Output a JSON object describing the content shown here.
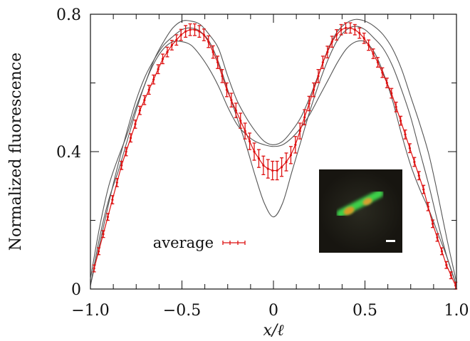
{
  "chart_data": {
    "type": "line",
    "title": "",
    "xlabel": "x/ℓ",
    "ylabel": "Normalized fluorescence",
    "xlim": [
      -1.0,
      1.0
    ],
    "ylim": [
      0,
      0.8
    ],
    "x_ticks": [
      -1.0,
      -0.5,
      0,
      0.5,
      1.0
    ],
    "x_tick_labels": [
      "−1.0",
      "−0.5",
      "0",
      "0.5",
      "1.0"
    ],
    "y_ticks": [
      0,
      0.4,
      0.8
    ],
    "y_tick_labels": [
      "0",
      "0.4",
      "0.8"
    ],
    "grid": false,
    "legend": {
      "position": "bottom-left",
      "entries": [
        "average"
      ]
    },
    "average_color": "#dd1111",
    "gray_color": "#555555",
    "series": [
      {
        "name": "average",
        "style": "errorbar",
        "x": [
          -0.98,
          -0.955,
          -0.93,
          -0.905,
          -0.88,
          -0.855,
          -0.83,
          -0.805,
          -0.78,
          -0.755,
          -0.73,
          -0.705,
          -0.68,
          -0.655,
          -0.63,
          -0.605,
          -0.58,
          -0.555,
          -0.53,
          -0.505,
          -0.48,
          -0.455,
          -0.43,
          -0.405,
          -0.38,
          -0.355,
          -0.33,
          -0.305,
          -0.28,
          -0.255,
          -0.23,
          -0.205,
          -0.18,
          -0.155,
          -0.13,
          -0.105,
          -0.08,
          -0.055,
          -0.03,
          -0.005,
          0.02,
          0.045,
          0.07,
          0.095,
          0.12,
          0.145,
          0.17,
          0.195,
          0.22,
          0.245,
          0.27,
          0.295,
          0.32,
          0.345,
          0.37,
          0.395,
          0.42,
          0.445,
          0.47,
          0.495,
          0.52,
          0.545,
          0.57,
          0.595,
          0.62,
          0.645,
          0.67,
          0.695,
          0.72,
          0.745,
          0.77,
          0.795,
          0.82,
          0.845,
          0.87,
          0.895,
          0.92,
          0.945,
          0.97,
          0.995
        ],
        "y": [
          0.06,
          0.11,
          0.16,
          0.21,
          0.26,
          0.31,
          0.36,
          0.4,
          0.44,
          0.48,
          0.52,
          0.55,
          0.58,
          0.61,
          0.64,
          0.67,
          0.69,
          0.71,
          0.725,
          0.74,
          0.75,
          0.755,
          0.755,
          0.75,
          0.74,
          0.72,
          0.69,
          0.66,
          0.62,
          0.58,
          0.55,
          0.52,
          0.49,
          0.46,
          0.43,
          0.4,
          0.38,
          0.36,
          0.35,
          0.345,
          0.345,
          0.355,
          0.37,
          0.39,
          0.42,
          0.46,
          0.5,
          0.54,
          0.58,
          0.62,
          0.66,
          0.69,
          0.72,
          0.74,
          0.755,
          0.76,
          0.76,
          0.755,
          0.745,
          0.73,
          0.71,
          0.685,
          0.66,
          0.63,
          0.6,
          0.57,
          0.53,
          0.49,
          0.45,
          0.41,
          0.37,
          0.33,
          0.29,
          0.24,
          0.19,
          0.15,
          0.11,
          0.07,
          0.04,
          0.01
        ],
        "err": [
          0.01,
          0.01,
          0.01,
          0.01,
          0.012,
          0.012,
          0.012,
          0.012,
          0.012,
          0.012,
          0.012,
          0.013,
          0.013,
          0.013,
          0.013,
          0.014,
          0.014,
          0.014,
          0.015,
          0.016,
          0.017,
          0.017,
          0.017,
          0.017,
          0.017,
          0.017,
          0.018,
          0.018,
          0.019,
          0.02,
          0.02,
          0.021,
          0.022,
          0.023,
          0.024,
          0.025,
          0.026,
          0.027,
          0.027,
          0.027,
          0.027,
          0.027,
          0.026,
          0.025,
          0.024,
          0.023,
          0.022,
          0.021,
          0.02,
          0.019,
          0.018,
          0.017,
          0.016,
          0.015,
          0.015,
          0.015,
          0.015,
          0.015,
          0.015,
          0.015,
          0.015,
          0.014,
          0.014,
          0.014,
          0.014,
          0.014,
          0.014,
          0.013,
          0.013,
          0.013,
          0.013,
          0.012,
          0.012,
          0.012,
          0.011,
          0.011,
          0.01,
          0.01,
          0.01,
          0.01
        ]
      },
      {
        "name": "",
        "style": "line",
        "x": [
          -1,
          -0.95,
          -0.9,
          -0.85,
          -0.8,
          -0.75,
          -0.7,
          -0.65,
          -0.6,
          -0.55,
          -0.5,
          -0.45,
          -0.4,
          -0.35,
          -0.3,
          -0.25,
          -0.2,
          -0.15,
          -0.1,
          -0.05,
          0,
          0.05,
          0.1,
          0.15,
          0.2,
          0.25,
          0.3,
          0.35,
          0.4,
          0.45,
          0.5,
          0.55,
          0.6,
          0.65,
          0.7,
          0.75,
          0.8,
          0.85,
          0.9,
          0.95,
          1
        ],
        "y": [
          0.01,
          0.13,
          0.25,
          0.36,
          0.46,
          0.55,
          0.62,
          0.67,
          0.71,
          0.735,
          0.755,
          0.76,
          0.75,
          0.72,
          0.66,
          0.58,
          0.5,
          0.42,
          0.33,
          0.25,
          0.21,
          0.25,
          0.34,
          0.43,
          0.52,
          0.6,
          0.67,
          0.725,
          0.755,
          0.765,
          0.755,
          0.73,
          0.7,
          0.65,
          0.58,
          0.5,
          0.4,
          0.3,
          0.19,
          0.09,
          0.01
        ]
      },
      {
        "name": "",
        "style": "line",
        "x": [
          -1,
          -0.95,
          -0.9,
          -0.85,
          -0.8,
          -0.75,
          -0.7,
          -0.65,
          -0.6,
          -0.55,
          -0.5,
          -0.45,
          -0.4,
          -0.35,
          -0.3,
          -0.25,
          -0.2,
          -0.15,
          -0.1,
          -0.05,
          0,
          0.05,
          0.1,
          0.15,
          0.2,
          0.25,
          0.3,
          0.35,
          0.4,
          0.45,
          0.5,
          0.55,
          0.6,
          0.65,
          0.7,
          0.75,
          0.8,
          0.85,
          0.9,
          0.95,
          1
        ],
        "y": [
          0.01,
          0.15,
          0.26,
          0.34,
          0.43,
          0.52,
          0.6,
          0.66,
          0.7,
          0.72,
          0.72,
          0.71,
          0.68,
          0.64,
          0.59,
          0.53,
          0.48,
          0.45,
          0.43,
          0.42,
          0.415,
          0.42,
          0.44,
          0.47,
          0.51,
          0.56,
          0.61,
          0.66,
          0.7,
          0.72,
          0.72,
          0.69,
          0.63,
          0.55,
          0.45,
          0.36,
          0.29,
          0.23,
          0.16,
          0.09,
          0.01
        ]
      },
      {
        "name": "",
        "style": "line",
        "x": [
          -1,
          -0.95,
          -0.9,
          -0.85,
          -0.8,
          -0.75,
          -0.7,
          -0.65,
          -0.6,
          -0.55,
          -0.5,
          -0.45,
          -0.4,
          -0.35,
          -0.3,
          -0.25,
          -0.2,
          -0.15,
          -0.1,
          -0.05,
          0,
          0.05,
          0.1,
          0.15,
          0.2,
          0.25,
          0.3,
          0.35,
          0.4,
          0.45,
          0.5,
          0.55,
          0.6,
          0.65,
          0.7,
          0.75,
          0.8,
          0.85,
          0.9,
          0.95,
          1
        ],
        "y": [
          0.03,
          0.18,
          0.3,
          0.38,
          0.45,
          0.53,
          0.6,
          0.67,
          0.72,
          0.76,
          0.78,
          0.78,
          0.77,
          0.74,
          0.7,
          0.62,
          0.55,
          0.5,
          0.46,
          0.43,
          0.42,
          0.43,
          0.46,
          0.5,
          0.56,
          0.63,
          0.7,
          0.75,
          0.775,
          0.785,
          0.78,
          0.765,
          0.74,
          0.7,
          0.64,
          0.56,
          0.48,
          0.39,
          0.27,
          0.14,
          0.02
        ]
      }
    ],
    "inset": {
      "kind": "micrograph",
      "description_colors": {
        "background": "#1c1a14",
        "membrane": "#3ccf48",
        "foci": "#d89a28",
        "scalebar": "#ffffff"
      }
    }
  }
}
